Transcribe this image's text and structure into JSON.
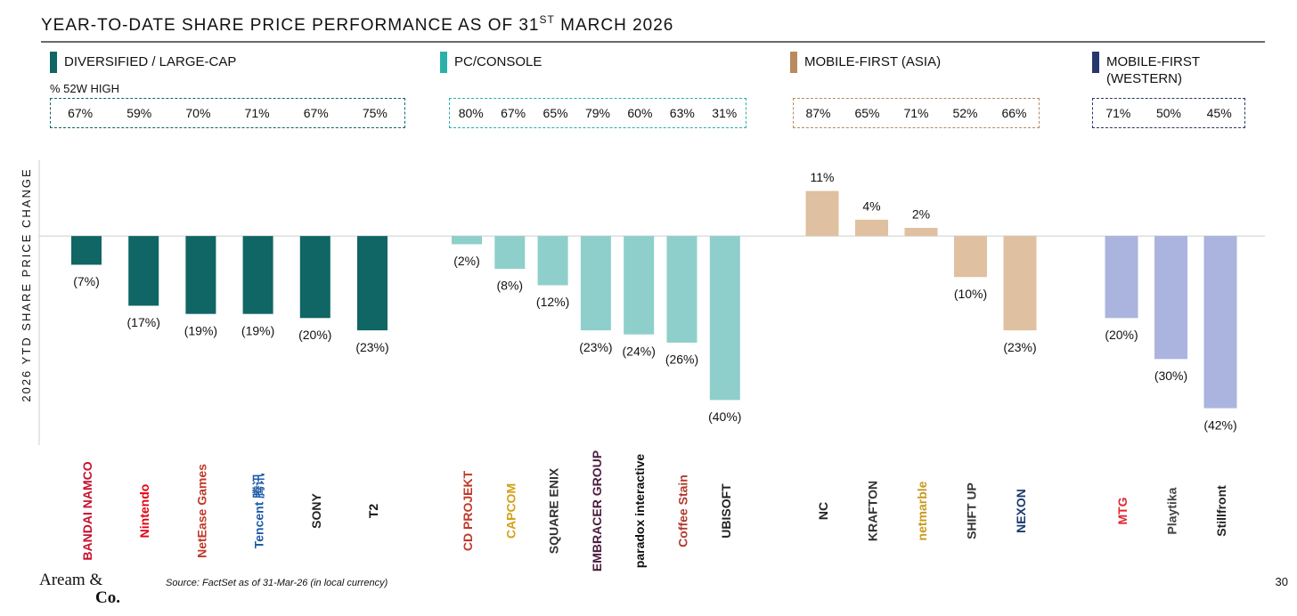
{
  "chart_data": {
    "type": "bar",
    "title": "YEAR-TO-DATE SHARE PRICE PERFORMANCE AS OF 31",
    "title_sup": "ST",
    "title_end": " MARCH 2026",
    "ylabel": "2026 YTD SHARE PRICE CHANGE",
    "high_label": "% 52W HIGH",
    "ylim": [
      -51,
      18.5
    ],
    "groups": [
      {
        "name": "DIVERSIFIED / LARGE-CAP",
        "color": "#0f6664",
        "marker_color": "#0f6664",
        "categories": [
          "BANDAI NAMCO",
          "Nintendo",
          "NetEase Games",
          "Tencent 腾讯",
          "SONY",
          "T2"
        ],
        "logo_colors": [
          "#c8102e",
          "#e60012",
          "#c0392b",
          "#1e5aa8",
          "#222222",
          "#111111"
        ],
        "values": [
          -7,
          -17,
          -19,
          -19,
          -20,
          -23
        ],
        "value_labels": [
          "(7%)",
          "(17%)",
          "(19%)",
          "(19%)",
          "(20%)",
          "(23%)"
        ],
        "high_52w": [
          "67%",
          "59%",
          "70%",
          "71%",
          "67%",
          "75%"
        ]
      },
      {
        "name": "PC/CONSOLE",
        "color": "#8ecfcb",
        "marker_color": "#2ab0a9",
        "categories": [
          "CD PROJEKT",
          "CAPCOM",
          "SQUARE ENIX",
          "EMBRACER GROUP",
          "paradox interactive",
          "Coffee Stain",
          "UBISOFT"
        ],
        "logo_colors": [
          "#c0392b",
          "#d4a017",
          "#333333",
          "#4a1d3f",
          "#111111",
          "#b03a2e",
          "#222222"
        ],
        "values": [
          -2,
          -8,
          -12,
          -23,
          -24,
          -26,
          -40
        ],
        "value_labels": [
          "(2%)",
          "(8%)",
          "(12%)",
          "(23%)",
          "(24%)",
          "(26%)",
          "(40%)"
        ],
        "high_52w": [
          "80%",
          "67%",
          "65%",
          "79%",
          "60%",
          "63%",
          "31%"
        ]
      },
      {
        "name": "MOBILE-FIRST (ASIA)",
        "color": "#dfc0a0",
        "marker_color": "#b98a5e",
        "categories": [
          "NC",
          "KRAFTON",
          "netmarble",
          "SHIFT UP",
          "NEXON"
        ],
        "logo_colors": [
          "#222222",
          "#333333",
          "#c79a1e",
          "#333333",
          "#1a3a6e"
        ],
        "values": [
          11,
          4,
          2,
          -10,
          -23
        ],
        "value_labels": [
          "11%",
          "4%",
          "2%",
          "(10%)",
          "(23%)"
        ],
        "high_52w": [
          "87%",
          "65%",
          "71%",
          "52%",
          "66%"
        ]
      },
      {
        "name": "MOBILE-FIRST (WESTERN)",
        "color": "#aab4de",
        "marker_color": "#28366e",
        "categories": [
          "MTG",
          "Playtika",
          "Stillfront"
        ],
        "logo_colors": [
          "#e3262f",
          "#444444",
          "#222222"
        ],
        "values": [
          -20,
          -30,
          -42
        ],
        "value_labels": [
          "(20%)",
          "(30%)",
          "(42%)"
        ],
        "high_52w": [
          "71%",
          "50%",
          "45%"
        ]
      }
    ],
    "brand_line1": "Aream &",
    "brand_line2": "Co.",
    "source": "Source: FactSet as of 31-Mar-26 (in local currency)",
    "page_number": "30"
  }
}
